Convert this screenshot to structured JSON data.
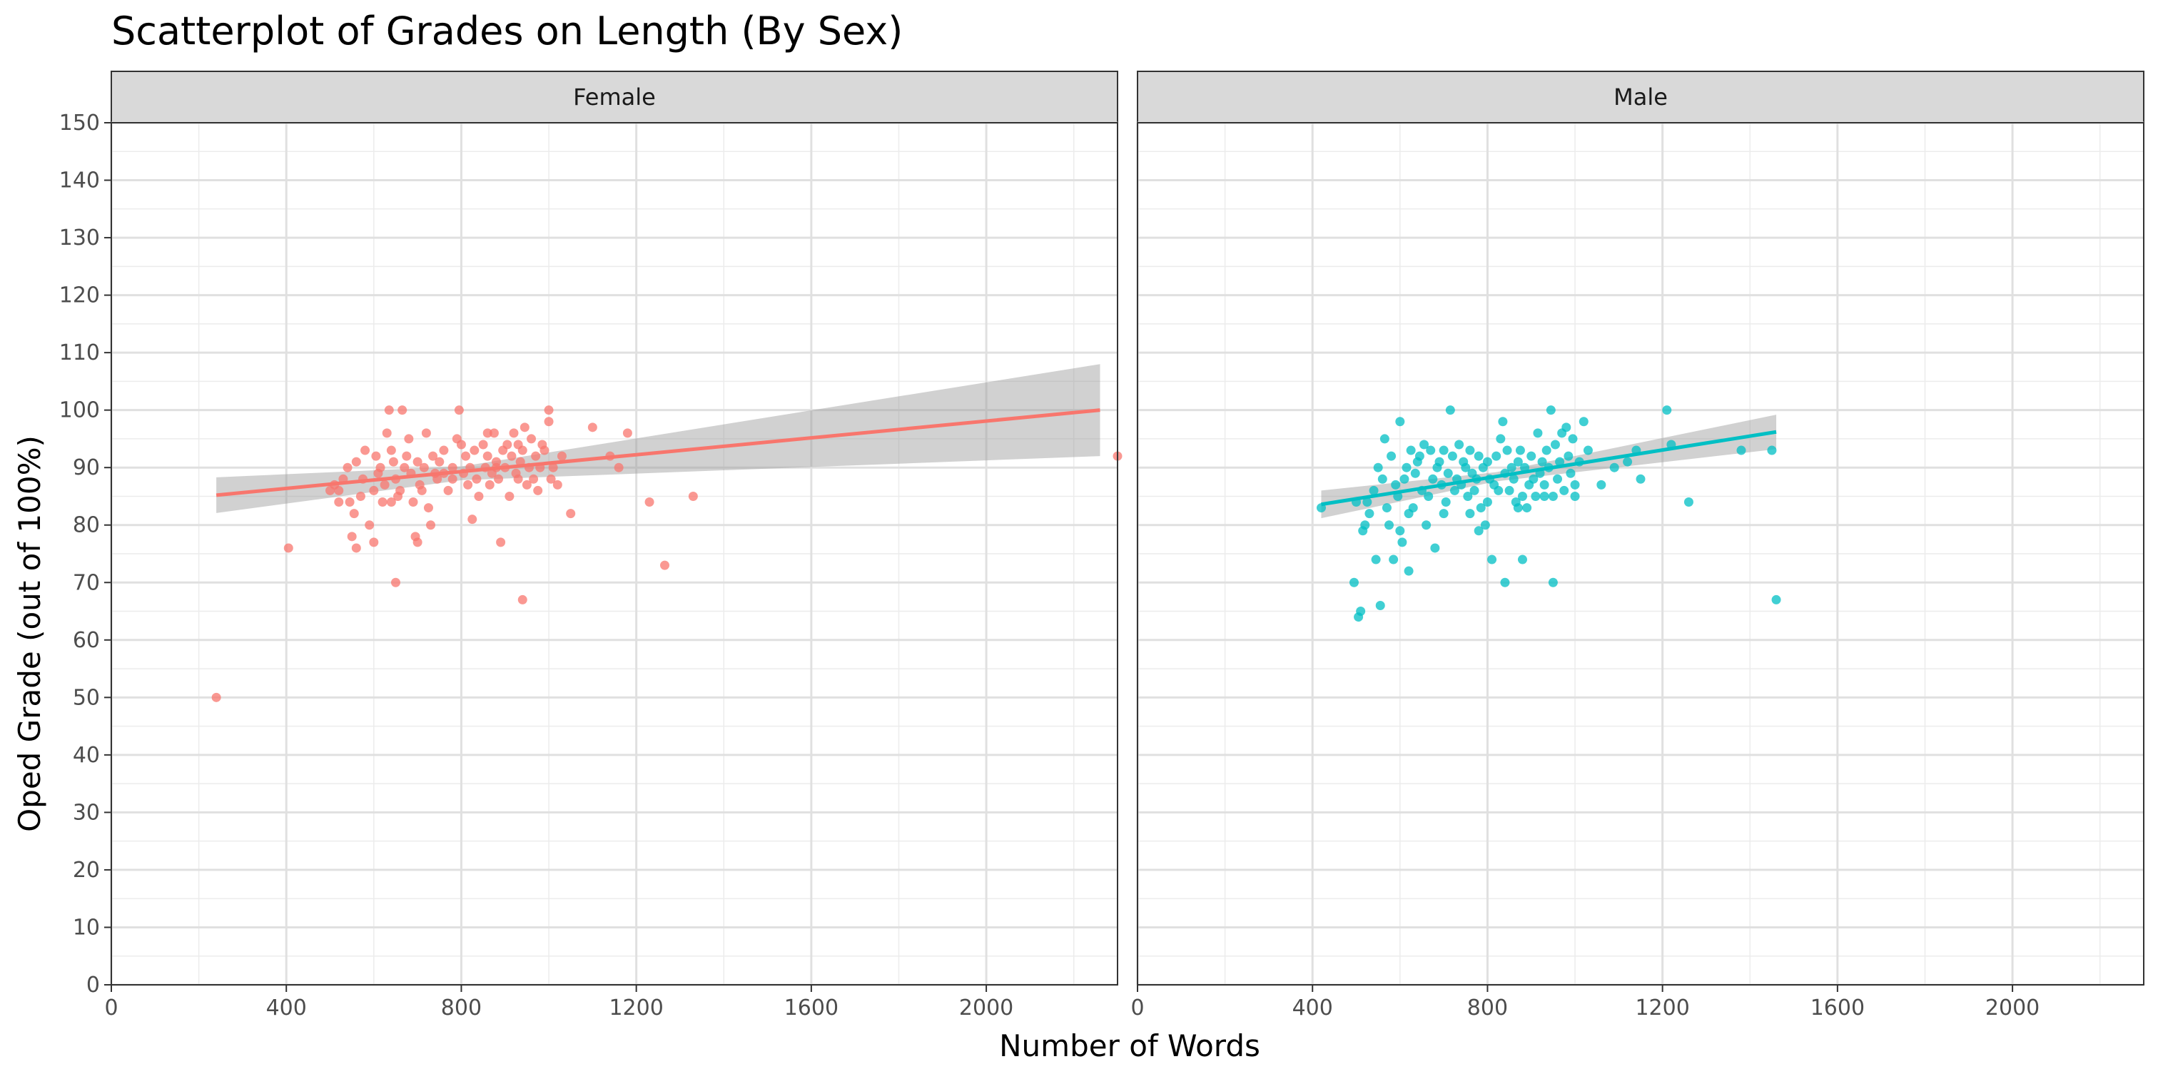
{
  "chart_data": {
    "type": "scatter",
    "title": "Scatterplot of Grades on Length (By Sex)",
    "xlabel": "Number of Words",
    "ylabel": "Oped Grade (out of 100%)",
    "xlim": [
      0,
      2300
    ],
    "ylim": [
      0,
      150
    ],
    "x_ticks": [
      0,
      400,
      800,
      1200,
      1600,
      2000
    ],
    "y_ticks": [
      0,
      10,
      20,
      30,
      40,
      50,
      60,
      70,
      80,
      90,
      100,
      110,
      120,
      130,
      140,
      150
    ],
    "grid": true,
    "legend": "none",
    "facets": [
      {
        "label": "Female",
        "color": "#F8766D",
        "points": [
          [
            240,
            50
          ],
          [
            405,
            76
          ],
          [
            500,
            86
          ],
          [
            510,
            87
          ],
          [
            520,
            84
          ],
          [
            530,
            88
          ],
          [
            540,
            90
          ],
          [
            545,
            84
          ],
          [
            550,
            78
          ],
          [
            555,
            82
          ],
          [
            560,
            91
          ],
          [
            570,
            85
          ],
          [
            575,
            88
          ],
          [
            580,
            93
          ],
          [
            590,
            80
          ],
          [
            600,
            86
          ],
          [
            605,
            92
          ],
          [
            610,
            89
          ],
          [
            615,
            90
          ],
          [
            620,
            84
          ],
          [
            625,
            87
          ],
          [
            630,
            96
          ],
          [
            635,
            100
          ],
          [
            640,
            93
          ],
          [
            645,
            91
          ],
          [
            650,
            88
          ],
          [
            655,
            85
          ],
          [
            660,
            86
          ],
          [
            665,
            100
          ],
          [
            670,
            90
          ],
          [
            675,
            92
          ],
          [
            680,
            95
          ],
          [
            685,
            89
          ],
          [
            690,
            84
          ],
          [
            695,
            78
          ],
          [
            700,
            91
          ],
          [
            705,
            87
          ],
          [
            710,
            86
          ],
          [
            715,
            90
          ],
          [
            720,
            96
          ],
          [
            725,
            83
          ],
          [
            730,
            80
          ],
          [
            735,
            92
          ],
          [
            740,
            89
          ],
          [
            745,
            88
          ],
          [
            750,
            91
          ],
          [
            760,
            93
          ],
          [
            770,
            86
          ],
          [
            780,
            88
          ],
          [
            790,
            95
          ],
          [
            795,
            100
          ],
          [
            800,
            94
          ],
          [
            805,
            89
          ],
          [
            810,
            92
          ],
          [
            815,
            87
          ],
          [
            820,
            90
          ],
          [
            825,
            81
          ],
          [
            830,
            93
          ],
          [
            835,
            88
          ],
          [
            840,
            85
          ],
          [
            850,
            94
          ],
          [
            855,
            90
          ],
          [
            860,
            92
          ],
          [
            865,
            87
          ],
          [
            870,
            89
          ],
          [
            875,
            96
          ],
          [
            880,
            91
          ],
          [
            885,
            88
          ],
          [
            890,
            77
          ],
          [
            895,
            93
          ],
          [
            900,
            90
          ],
          [
            905,
            94
          ],
          [
            910,
            85
          ],
          [
            915,
            92
          ],
          [
            920,
            96
          ],
          [
            925,
            89
          ],
          [
            930,
            88
          ],
          [
            935,
            91
          ],
          [
            940,
            93
          ],
          [
            945,
            97
          ],
          [
            950,
            87
          ],
          [
            955,
            90
          ],
          [
            960,
            95
          ],
          [
            965,
            88
          ],
          [
            970,
            92
          ],
          [
            975,
            86
          ],
          [
            980,
            90
          ],
          [
            985,
            94
          ],
          [
            990,
            93
          ],
          [
            1000,
            100
          ],
          [
            1005,
            88
          ],
          [
            1010,
            90
          ],
          [
            1020,
            87
          ],
          [
            1030,
            92
          ],
          [
            940,
            67
          ],
          [
            650,
            70
          ],
          [
            1050,
            82
          ],
          [
            1100,
            97
          ],
          [
            1140,
            92
          ],
          [
            1160,
            90
          ],
          [
            1180,
            96
          ],
          [
            1230,
            84
          ],
          [
            1265,
            73
          ],
          [
            1330,
            85
          ],
          [
            2300,
            92
          ],
          [
            560,
            76
          ],
          [
            600,
            77
          ],
          [
            700,
            77
          ],
          [
            520,
            86
          ],
          [
            640,
            84
          ],
          [
            760,
            89
          ],
          [
            880,
            90
          ],
          [
            780,
            90
          ],
          [
            860,
            96
          ],
          [
            930,
            94
          ],
          [
            1000,
            98
          ]
        ],
        "fit_line": {
          "x": [
            240,
            2260
          ],
          "y": [
            85.2,
            100.0
          ]
        },
        "ci_band": {
          "x": [
            240,
            800,
            2260
          ],
          "lower": [
            82.1,
            87.8,
            92.0
          ],
          "upper": [
            88.3,
            90.2,
            108.0
          ]
        }
      },
      {
        "label": "Male",
        "color": "#00BFC4",
        "points": [
          [
            420,
            83
          ],
          [
            495,
            70
          ],
          [
            500,
            84
          ],
          [
            505,
            64
          ],
          [
            510,
            65
          ],
          [
            515,
            79
          ],
          [
            520,
            80
          ],
          [
            525,
            84
          ],
          [
            530,
            82
          ],
          [
            540,
            86
          ],
          [
            545,
            74
          ],
          [
            550,
            90
          ],
          [
            555,
            66
          ],
          [
            560,
            88
          ],
          [
            565,
            95
          ],
          [
            570,
            83
          ],
          [
            575,
            80
          ],
          [
            580,
            92
          ],
          [
            585,
            74
          ],
          [
            590,
            87
          ],
          [
            595,
            85
          ],
          [
            600,
            98
          ],
          [
            605,
            77
          ],
          [
            610,
            88
          ],
          [
            615,
            90
          ],
          [
            620,
            72
          ],
          [
            625,
            93
          ],
          [
            630,
            83
          ],
          [
            635,
            89
          ],
          [
            640,
            91
          ],
          [
            645,
            92
          ],
          [
            650,
            86
          ],
          [
            655,
            94
          ],
          [
            660,
            80
          ],
          [
            665,
            85
          ],
          [
            670,
            93
          ],
          [
            675,
            88
          ],
          [
            680,
            76
          ],
          [
            685,
            90
          ],
          [
            690,
            91
          ],
          [
            695,
            87
          ],
          [
            700,
            93
          ],
          [
            705,
            84
          ],
          [
            710,
            89
          ],
          [
            715,
            100
          ],
          [
            720,
            92
          ],
          [
            725,
            86
          ],
          [
            730,
            88
          ],
          [
            735,
            94
          ],
          [
            740,
            87
          ],
          [
            745,
            91
          ],
          [
            750,
            90
          ],
          [
            755,
            85
          ],
          [
            760,
            93
          ],
          [
            765,
            89
          ],
          [
            770,
            86
          ],
          [
            775,
            88
          ],
          [
            780,
            92
          ],
          [
            785,
            83
          ],
          [
            790,
            90
          ],
          [
            795,
            80
          ],
          [
            800,
            91
          ],
          [
            805,
            88
          ],
          [
            810,
            74
          ],
          [
            815,
            87
          ],
          [
            820,
            92
          ],
          [
            825,
            86
          ],
          [
            830,
            95
          ],
          [
            835,
            98
          ],
          [
            840,
            89
          ],
          [
            845,
            93
          ],
          [
            850,
            86
          ],
          [
            855,
            90
          ],
          [
            860,
            88
          ],
          [
            865,
            84
          ],
          [
            870,
            91
          ],
          [
            875,
            93
          ],
          [
            880,
            85
          ],
          [
            885,
            90
          ],
          [
            890,
            83
          ],
          [
            895,
            87
          ],
          [
            900,
            92
          ],
          [
            905,
            88
          ],
          [
            910,
            85
          ],
          [
            915,
            96
          ],
          [
            920,
            89
          ],
          [
            925,
            91
          ],
          [
            930,
            87
          ],
          [
            935,
            93
          ],
          [
            940,
            90
          ],
          [
            945,
            100
          ],
          [
            950,
            85
          ],
          [
            955,
            94
          ],
          [
            960,
            88
          ],
          [
            965,
            91
          ],
          [
            970,
            96
          ],
          [
            975,
            86
          ],
          [
            980,
            97
          ],
          [
            985,
            92
          ],
          [
            990,
            89
          ],
          [
            995,
            95
          ],
          [
            1000,
            87
          ],
          [
            1010,
            91
          ],
          [
            1020,
            98
          ],
          [
            1030,
            93
          ],
          [
            1060,
            87
          ],
          [
            1090,
            90
          ],
          [
            1120,
            91
          ],
          [
            1140,
            93
          ],
          [
            1150,
            88
          ],
          [
            1210,
            100
          ],
          [
            1220,
            94
          ],
          [
            1260,
            84
          ],
          [
            1380,
            93
          ],
          [
            1450,
            93
          ],
          [
            1460,
            67
          ],
          [
            950,
            70
          ],
          [
            840,
            70
          ],
          [
            880,
            74
          ],
          [
            600,
            79
          ],
          [
            620,
            82
          ],
          [
            700,
            82
          ],
          [
            760,
            82
          ],
          [
            780,
            79
          ],
          [
            800,
            84
          ],
          [
            870,
            83
          ],
          [
            930,
            85
          ],
          [
            1000,
            85
          ]
        ],
        "fit_line": {
          "x": [
            420,
            1460
          ],
          "y": [
            83.6,
            96.2
          ]
        },
        "ci_band": {
          "x": [
            420,
            820,
            1460
          ],
          "lower": [
            81.2,
            87.6,
            93.2
          ],
          "upper": [
            86.0,
            89.2,
            99.2
          ]
        }
      }
    ]
  }
}
